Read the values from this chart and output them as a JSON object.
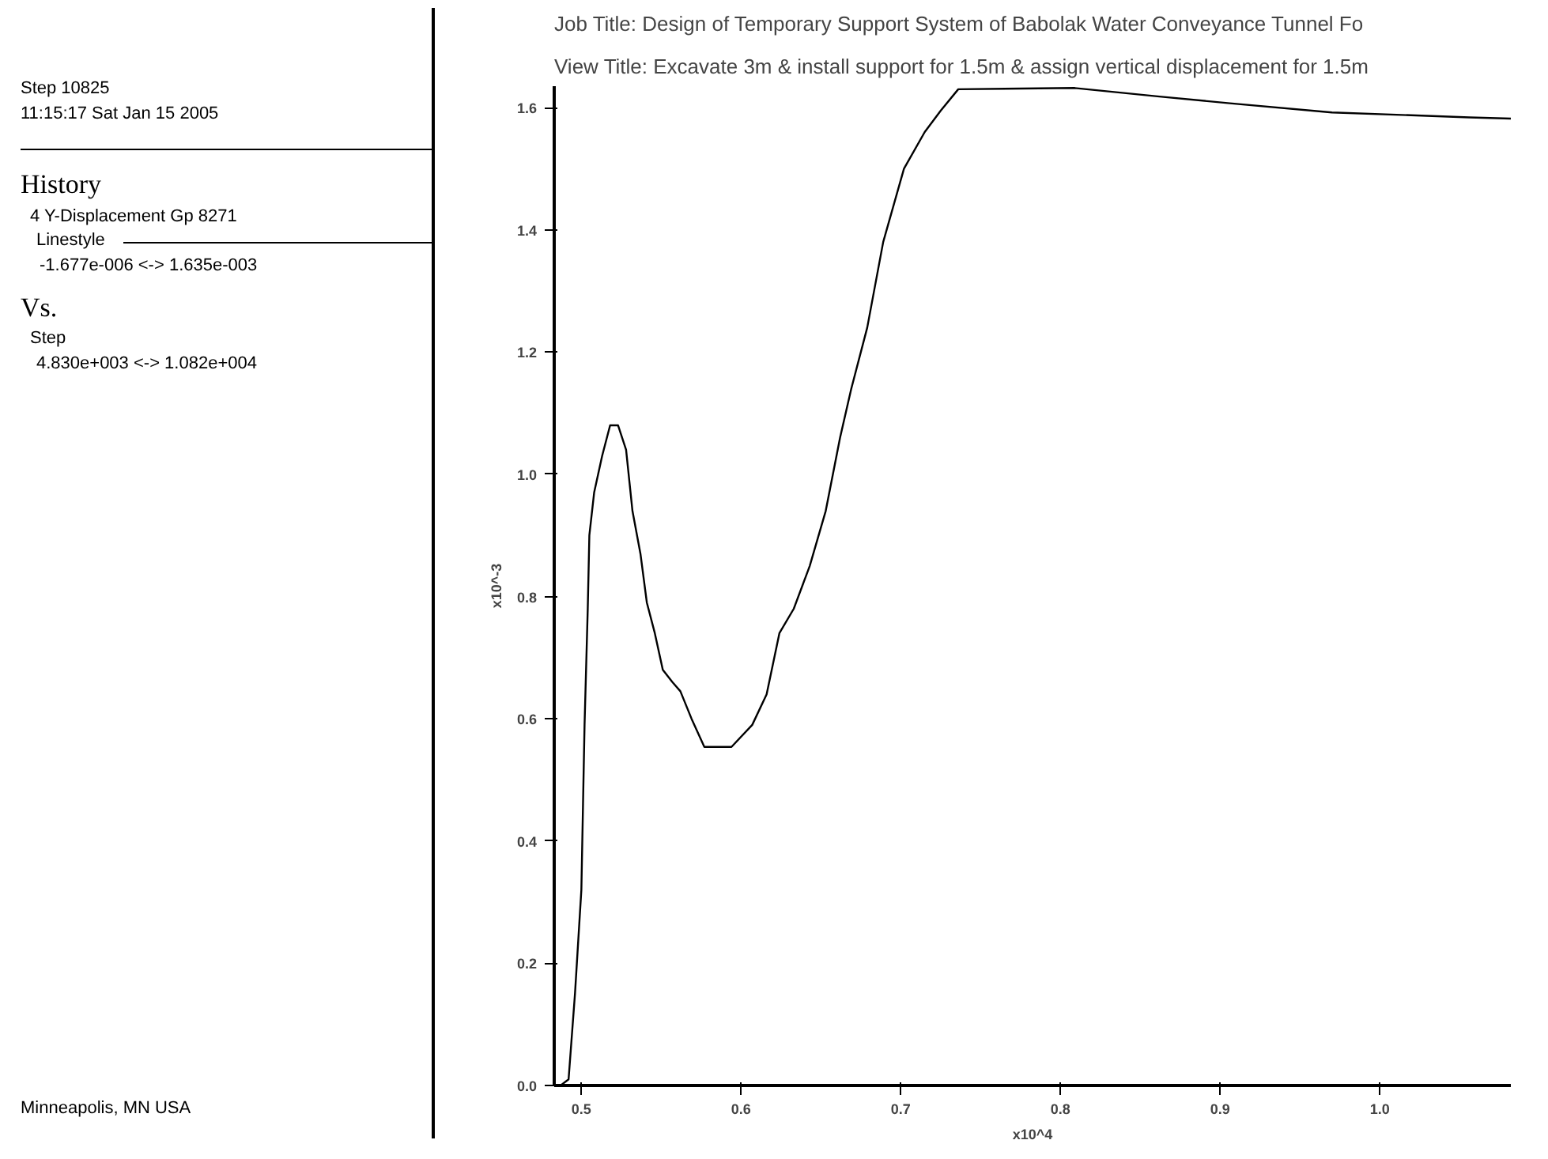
{
  "chart_data": {
    "type": "line",
    "title": "Job Title: Design of Temporary Support System of Babolak Water Conveyance Tunnel Fo",
    "subtitle": "View Title: Excavate 3m & install support for 1.5m & assign vertical displacement for 1.5m",
    "xlabel": "x10^4",
    "ylabel": "x10^-3",
    "annotations": [
      "Step 10825",
      "11:15:17 Sat Jan 15 2005",
      "History",
      "4 Y-Displacement Gp 8271",
      "Linestyle",
      "-1.677e-006 <-> 1.635e-003",
      "Vs.",
      "Step",
      "4.830e+003 <-> 1.082e+004",
      "Minneapolis, MN  USA"
    ],
    "series": [
      {
        "color": "#000000",
        "x": [
          0.483,
          0.487,
          0.492,
          0.496,
          0.5,
          0.502,
          0.504,
          0.505,
          0.508,
          0.513,
          0.518,
          0.523,
          0.528,
          0.532,
          0.537,
          0.541,
          0.546,
          0.551,
          0.557,
          0.562,
          0.569,
          0.577,
          0.594,
          0.607,
          0.616,
          0.624,
          0.633,
          0.643,
          0.653,
          0.662,
          0.669,
          0.679,
          0.689,
          0.702,
          0.715,
          0.725,
          0.736,
          0.809,
          0.862,
          0.906,
          0.97,
          1.056,
          1.082
        ],
        "values": [
          0.0,
          0.0,
          0.01,
          0.15,
          0.32,
          0.59,
          0.78,
          0.9,
          0.97,
          1.03,
          1.08,
          1.08,
          1.04,
          0.94,
          0.87,
          0.79,
          0.74,
          0.68,
          0.66,
          0.645,
          0.6,
          0.554,
          0.554,
          0.59,
          0.64,
          0.74,
          0.78,
          0.85,
          0.94,
          1.06,
          1.14,
          1.24,
          1.38,
          1.5,
          1.56,
          1.595,
          1.63,
          1.632,
          1.618,
          1.607,
          1.592,
          1.584,
          1.582
        ]
      }
    ],
    "xlim": [
      0.483,
      1.082
    ],
    "ylim": [
      0.0,
      1.635
    ],
    "xticks": [
      {
        "value": 0.5,
        "label": "0.5"
      },
      {
        "value": 0.6,
        "label": "0.6"
      },
      {
        "value": 0.7,
        "label": "0.7"
      },
      {
        "value": 0.8,
        "label": "0.8"
      },
      {
        "value": 0.9,
        "label": "0.9"
      },
      {
        "value": 1.0,
        "label": "1.0"
      }
    ],
    "yticks": [
      {
        "value": 0.0,
        "label": "0.0"
      },
      {
        "value": 0.2,
        "label": "0.2"
      },
      {
        "value": 0.4,
        "label": "0.4"
      },
      {
        "value": 0.6,
        "label": "0.6"
      },
      {
        "value": 0.8,
        "label": "0.8"
      },
      {
        "value": 1.0,
        "label": "1.0"
      },
      {
        "value": 1.2,
        "label": "1.2"
      },
      {
        "value": 1.4,
        "label": "1.4"
      },
      {
        "value": 1.6,
        "label": "1.6"
      }
    ],
    "grid": false,
    "line_style": "solid"
  }
}
